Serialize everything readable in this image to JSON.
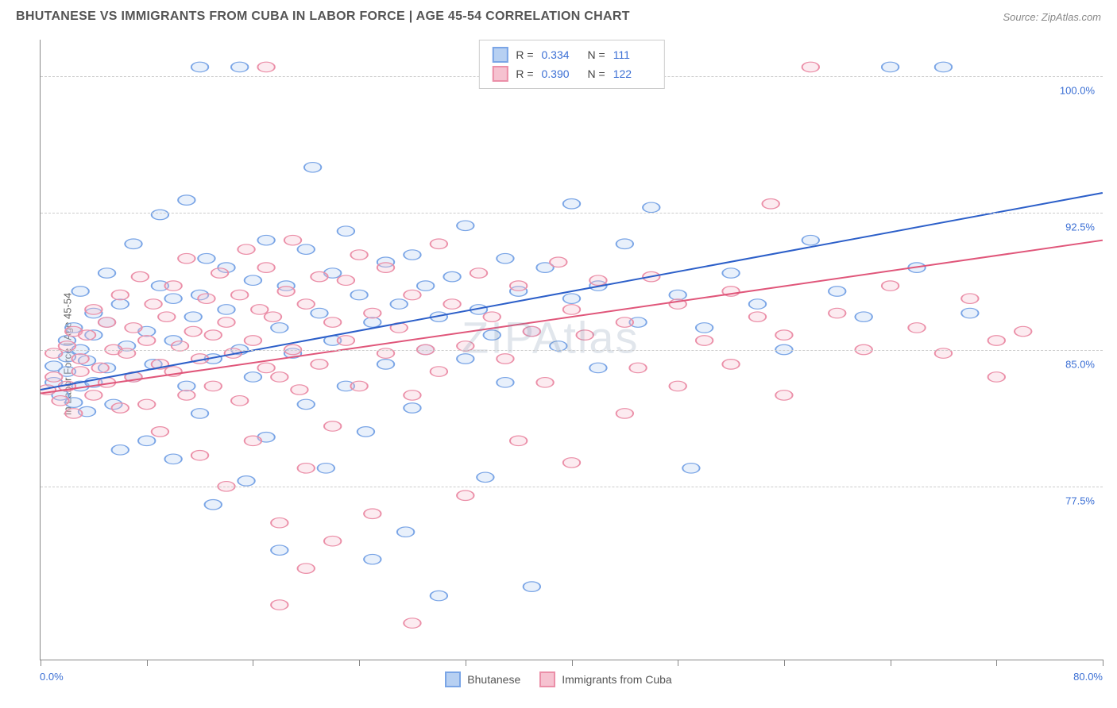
{
  "header": {
    "title": "BHUTANESE VS IMMIGRANTS FROM CUBA IN LABOR FORCE | AGE 45-54 CORRELATION CHART",
    "source": "Source: ZipAtlas.com"
  },
  "watermark": "ZIPAtlas",
  "chart": {
    "type": "scatter",
    "y_axis_label": "In Labor Force | Age 45-54",
    "x_range": [
      0,
      80
    ],
    "y_range": [
      68,
      102
    ],
    "x_start_label": "0.0%",
    "x_end_label": "80.0%",
    "y_ticks": [
      {
        "value": 77.5,
        "label": "77.5%"
      },
      {
        "value": 85.0,
        "label": "85.0%"
      },
      {
        "value": 92.5,
        "label": "92.5%"
      },
      {
        "value": 100.0,
        "label": "100.0%"
      }
    ],
    "x_tick_positions": [
      0,
      8,
      16,
      24,
      32,
      40,
      48,
      56,
      64,
      72,
      80
    ],
    "background_color": "#ffffff",
    "grid_color": "#cccccc",
    "axis_color": "#888888",
    "marker_radius": 8,
    "marker_stroke_width": 1.5,
    "marker_fill_opacity": 0.32,
    "line_width": 2.5,
    "series": [
      {
        "id": "bhutanese",
        "label": "Bhutanese",
        "color_stroke": "#7aa5e6",
        "color_fill": "#b7d0f2",
        "trend_color": "#2c5fc9",
        "R": "0.334",
        "N": "111",
        "trend": {
          "x1": 0,
          "y1": 82.8,
          "x2": 80,
          "y2": 93.6
        },
        "points": [
          [
            1,
            83.2
          ],
          [
            1,
            84.1
          ],
          [
            1.5,
            82.5
          ],
          [
            2,
            85.5
          ],
          [
            2,
            83.8
          ],
          [
            2,
            84.6
          ],
          [
            2.5,
            82.1
          ],
          [
            2.5,
            86.2
          ],
          [
            3,
            85.0
          ],
          [
            3,
            83.0
          ],
          [
            3,
            88.2
          ],
          [
            3.5,
            84.4
          ],
          [
            3.5,
            81.6
          ],
          [
            4,
            85.8
          ],
          [
            4,
            87.0
          ],
          [
            4,
            83.2
          ],
          [
            5,
            86.5
          ],
          [
            5,
            84.0
          ],
          [
            5,
            89.2
          ],
          [
            5.5,
            82.0
          ],
          [
            6,
            79.5
          ],
          [
            6,
            87.5
          ],
          [
            6.5,
            85.2
          ],
          [
            7,
            90.8
          ],
          [
            7,
            83.5
          ],
          [
            8,
            86.0
          ],
          [
            8,
            80.0
          ],
          [
            8.5,
            84.2
          ],
          [
            9,
            88.5
          ],
          [
            9,
            92.4
          ],
          [
            10,
            85.5
          ],
          [
            10,
            79.0
          ],
          [
            10,
            87.8
          ],
          [
            11,
            93.2
          ],
          [
            11,
            83.0
          ],
          [
            11.5,
            86.8
          ],
          [
            12,
            88.0
          ],
          [
            12,
            81.5
          ],
          [
            12.5,
            90.0
          ],
          [
            13,
            84.5
          ],
          [
            13,
            76.5
          ],
          [
            14,
            87.2
          ],
          [
            14,
            89.5
          ],
          [
            15,
            85.0
          ],
          [
            15.5,
            77.8
          ],
          [
            16,
            88.8
          ],
          [
            16,
            83.5
          ],
          [
            17,
            91.0
          ],
          [
            17,
            80.2
          ],
          [
            18,
            86.2
          ],
          [
            18,
            74.0
          ],
          [
            18.5,
            88.5
          ],
          [
            19,
            84.8
          ],
          [
            20,
            90.5
          ],
          [
            20,
            82.0
          ],
          [
            20.5,
            95.0
          ],
          [
            21,
            87.0
          ],
          [
            21.5,
            78.5
          ],
          [
            22,
            89.2
          ],
          [
            22,
            85.5
          ],
          [
            23,
            83.0
          ],
          [
            23,
            91.5
          ],
          [
            24,
            88.0
          ],
          [
            24.5,
            80.5
          ],
          [
            25,
            86.5
          ],
          [
            25,
            73.5
          ],
          [
            26,
            89.8
          ],
          [
            26,
            84.2
          ],
          [
            27,
            87.5
          ],
          [
            27.5,
            75.0
          ],
          [
            28,
            90.2
          ],
          [
            28,
            81.8
          ],
          [
            29,
            85.0
          ],
          [
            29,
            88.5
          ],
          [
            30,
            86.8
          ],
          [
            30,
            71.5
          ],
          [
            31,
            89.0
          ],
          [
            32,
            84.5
          ],
          [
            32,
            91.8
          ],
          [
            33,
            87.2
          ],
          [
            33.5,
            78.0
          ],
          [
            34,
            85.8
          ],
          [
            35,
            90.0
          ],
          [
            35,
            83.2
          ],
          [
            36,
            88.2
          ],
          [
            37,
            86.0
          ],
          [
            37,
            72.0
          ],
          [
            38,
            89.5
          ],
          [
            39,
            85.2
          ],
          [
            40,
            87.8
          ],
          [
            40,
            93.0
          ],
          [
            42,
            88.5
          ],
          [
            42,
            84.0
          ],
          [
            44,
            90.8
          ],
          [
            45,
            86.5
          ],
          [
            46,
            92.8
          ],
          [
            48,
            88.0
          ],
          [
            49,
            78.5
          ],
          [
            50,
            86.2
          ],
          [
            52,
            89.2
          ],
          [
            54,
            87.5
          ],
          [
            56,
            85.0
          ],
          [
            58,
            91.0
          ],
          [
            60,
            88.2
          ],
          [
            62,
            86.8
          ],
          [
            64,
            100.5
          ],
          [
            66,
            89.5
          ],
          [
            68,
            100.5
          ],
          [
            70,
            87.0
          ],
          [
            12,
            100.5
          ],
          [
            15,
            100.5
          ]
        ]
      },
      {
        "id": "cuba",
        "label": "Immigrants from Cuba",
        "color_stroke": "#eb8fa8",
        "color_fill": "#f6c2d0",
        "trend_color": "#e0567a",
        "R": "0.390",
        "N": "122",
        "trend": {
          "x1": 0,
          "y1": 82.6,
          "x2": 80,
          "y2": 91.0
        },
        "points": [
          [
            0.5,
            82.8
          ],
          [
            1,
            83.5
          ],
          [
            1,
            84.8
          ],
          [
            1.5,
            82.2
          ],
          [
            2,
            85.2
          ],
          [
            2,
            83.0
          ],
          [
            2.5,
            86.0
          ],
          [
            2.5,
            81.5
          ],
          [
            3,
            84.5
          ],
          [
            3,
            83.8
          ],
          [
            3.5,
            85.8
          ],
          [
            4,
            82.5
          ],
          [
            4,
            87.2
          ],
          [
            4.5,
            84.0
          ],
          [
            5,
            86.5
          ],
          [
            5,
            83.2
          ],
          [
            5.5,
            85.0
          ],
          [
            6,
            88.0
          ],
          [
            6,
            81.8
          ],
          [
            6.5,
            84.8
          ],
          [
            7,
            86.2
          ],
          [
            7,
            83.5
          ],
          [
            7.5,
            89.0
          ],
          [
            8,
            82.0
          ],
          [
            8,
            85.5
          ],
          [
            8.5,
            87.5
          ],
          [
            9,
            84.2
          ],
          [
            9,
            80.5
          ],
          [
            9.5,
            86.8
          ],
          [
            10,
            83.8
          ],
          [
            10,
            88.5
          ],
          [
            10.5,
            85.2
          ],
          [
            11,
            82.5
          ],
          [
            11,
            90.0
          ],
          [
            11.5,
            86.0
          ],
          [
            12,
            84.5
          ],
          [
            12,
            79.2
          ],
          [
            12.5,
            87.8
          ],
          [
            13,
            85.8
          ],
          [
            13,
            83.0
          ],
          [
            13.5,
            89.2
          ],
          [
            14,
            86.5
          ],
          [
            14,
            77.5
          ],
          [
            14.5,
            84.8
          ],
          [
            15,
            88.0
          ],
          [
            15,
            82.2
          ],
          [
            15.5,
            90.5
          ],
          [
            16,
            85.5
          ],
          [
            16,
            80.0
          ],
          [
            16.5,
            87.2
          ],
          [
            17,
            84.0
          ],
          [
            17,
            89.5
          ],
          [
            17.5,
            86.8
          ],
          [
            18,
            83.5
          ],
          [
            18,
            75.5
          ],
          [
            18.5,
            88.2
          ],
          [
            19,
            85.0
          ],
          [
            19,
            91.0
          ],
          [
            19.5,
            82.8
          ],
          [
            20,
            87.5
          ],
          [
            20,
            78.5
          ],
          [
            21,
            89.0
          ],
          [
            21,
            84.2
          ],
          [
            22,
            86.5
          ],
          [
            22,
            80.8
          ],
          [
            23,
            88.8
          ],
          [
            23,
            85.5
          ],
          [
            24,
            83.0
          ],
          [
            24,
            90.2
          ],
          [
            25,
            87.0
          ],
          [
            25,
            76.0
          ],
          [
            26,
            84.8
          ],
          [
            26,
            89.5
          ],
          [
            27,
            86.2
          ],
          [
            28,
            82.5
          ],
          [
            28,
            88.0
          ],
          [
            29,
            85.0
          ],
          [
            30,
            90.8
          ],
          [
            30,
            83.8
          ],
          [
            31,
            87.5
          ],
          [
            32,
            85.2
          ],
          [
            33,
            89.2
          ],
          [
            34,
            86.8
          ],
          [
            35,
            84.5
          ],
          [
            36,
            88.5
          ],
          [
            37,
            86.0
          ],
          [
            38,
            83.2
          ],
          [
            39,
            89.8
          ],
          [
            40,
            87.2
          ],
          [
            41,
            85.8
          ],
          [
            42,
            88.8
          ],
          [
            44,
            86.5
          ],
          [
            45,
            84.0
          ],
          [
            46,
            89.0
          ],
          [
            48,
            87.5
          ],
          [
            50,
            85.5
          ],
          [
            52,
            88.2
          ],
          [
            54,
            86.8
          ],
          [
            55,
            93.0
          ],
          [
            56,
            82.5
          ],
          [
            58,
            100.5
          ],
          [
            60,
            87.0
          ],
          [
            62,
            85.0
          ],
          [
            64,
            88.5
          ],
          [
            66,
            86.2
          ],
          [
            68,
            84.8
          ],
          [
            70,
            87.8
          ],
          [
            72,
            85.5
          ],
          [
            72,
            83.5
          ],
          [
            74,
            86.0
          ],
          [
            17,
            100.5
          ],
          [
            20,
            73.0
          ],
          [
            22,
            74.5
          ],
          [
            18,
            71.0
          ],
          [
            28,
            70.0
          ],
          [
            32,
            77.0
          ],
          [
            36,
            80.0
          ],
          [
            40,
            78.8
          ],
          [
            44,
            81.5
          ],
          [
            48,
            83.0
          ],
          [
            52,
            84.2
          ],
          [
            56,
            85.8
          ]
        ]
      }
    ]
  }
}
